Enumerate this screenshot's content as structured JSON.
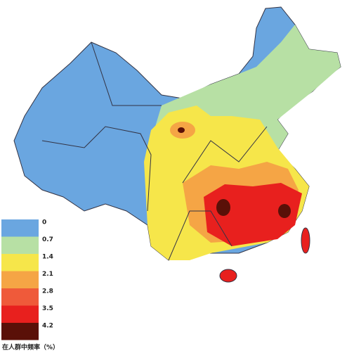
{
  "legend": {
    "items": [
      {
        "label": "0",
        "color": "#6aa6e0"
      },
      {
        "label": "0.7",
        "color": "#b7e0a4"
      },
      {
        "label": "1.4",
        "color": "#f6e64a"
      },
      {
        "label": "2.1",
        "color": "#f5a545"
      },
      {
        "label": "2.8",
        "color": "#ef5a3a"
      },
      {
        "label": "3.5",
        "color": "#e8201e"
      },
      {
        "label": "4.2",
        "color": "#5a1008"
      }
    ],
    "caption": "在人群中频率（%）"
  }
}
